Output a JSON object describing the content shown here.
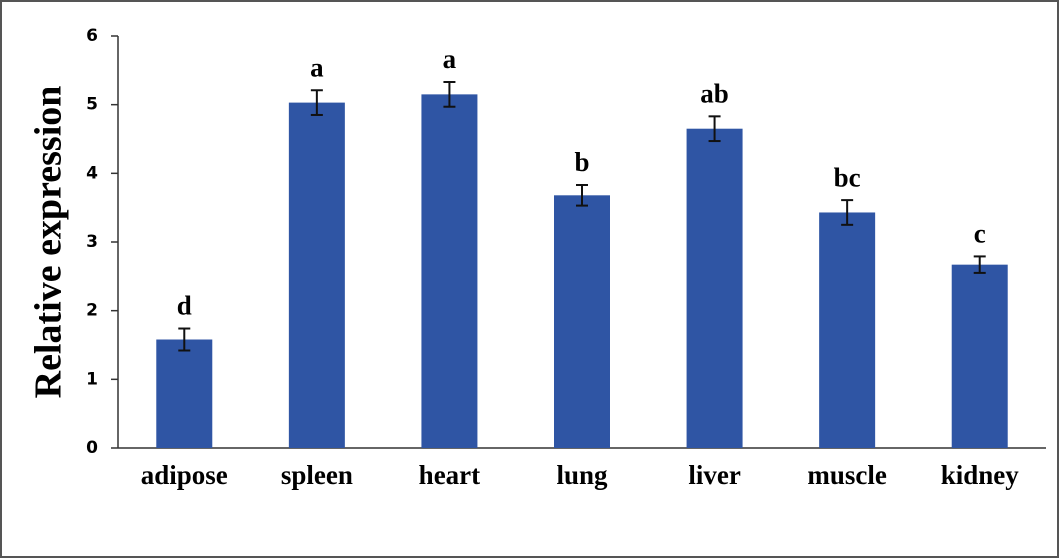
{
  "chart_data": {
    "type": "bar",
    "ylabel": "Relative expression",
    "categories": [
      "adipose",
      "spleen",
      "heart",
      "lung",
      "liver",
      "muscle",
      "kidney"
    ],
    "values": [
      1.58,
      5.03,
      5.15,
      3.68,
      4.65,
      3.43,
      2.67
    ],
    "errors": [
      0.16,
      0.18,
      0.18,
      0.15,
      0.18,
      0.18,
      0.12
    ],
    "annotations": [
      "d",
      "a",
      "a",
      "b",
      "ab",
      "bc",
      "c"
    ],
    "color": "#2f55a4",
    "ylim": [
      0,
      6
    ],
    "yticks": [
      0,
      1,
      2,
      3,
      4,
      5,
      6
    ],
    "grid": false
  }
}
